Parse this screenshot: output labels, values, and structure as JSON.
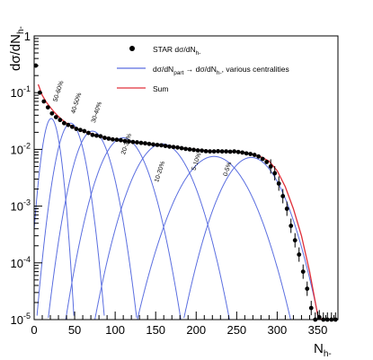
{
  "chart_data": {
    "type": "line",
    "title": "",
    "ylabel": "dσ/dN",
    "ylabel_sub": "h-",
    "xlabel": "N",
    "xlabel_sub": "h-",
    "xlim": [
      0,
      375
    ],
    "ylim": [
      1e-05,
      1
    ],
    "yscale": "log",
    "grid": false,
    "legend_position": "top-right",
    "x_ticks": [
      0,
      50,
      100,
      150,
      200,
      250,
      300,
      350
    ],
    "y_ticks": [
      {
        "value": 1,
        "base": "1",
        "exp": ""
      },
      {
        "value": 0.1,
        "base": "10",
        "exp": "-1"
      },
      {
        "value": 0.01,
        "base": "10",
        "exp": "-2"
      },
      {
        "value": 0.001,
        "base": "10",
        "exp": "-3"
      },
      {
        "value": 0.0001,
        "base": "10",
        "exp": "-4"
      },
      {
        "value": 1e-05,
        "base": "10",
        "exp": "-5"
      }
    ],
    "legend": [
      {
        "key": "data",
        "text": "STAR dσ/dN",
        "sub": "h-",
        "suffix": "",
        "marker": "circle"
      },
      {
        "key": "gauss",
        "text": "dσ/dN",
        "sub": "part",
        "suffix": " → dσ/dN",
        "sub2": "h-",
        "tail": ", various centralities",
        "marker": "line"
      },
      {
        "key": "sum",
        "text": "Sum",
        "sub": "",
        "suffix": "",
        "marker": "line"
      }
    ],
    "colors": {
      "data": "#000000",
      "gauss": "#5a6ee0",
      "sum": "#e0303a"
    },
    "centrality_labels": [
      {
        "text": "50-60%",
        "x": 28,
        "y": 0.068
      },
      {
        "text": "40-50%",
        "x": 50,
        "y": 0.042
      },
      {
        "text": "30-40%",
        "x": 75,
        "y": 0.029
      },
      {
        "text": "20-30%",
        "x": 112,
        "y": 0.008
      },
      {
        "text": "10-20%",
        "x": 153,
        "y": 0.0026
      },
      {
        "text": "5-10%",
        "x": 199,
        "y": 0.0042
      },
      {
        "text": "0-5%",
        "x": 238,
        "y": 0.0033
      }
    ],
    "series": [
      {
        "name": "STAR dσ/dN h-",
        "role": "data",
        "x": [
          2,
          7,
          12,
          17,
          22,
          27,
          32,
          37,
          42,
          47,
          52,
          57,
          62,
          67,
          72,
          77,
          82,
          87,
          92,
          97,
          102,
          107,
          112,
          117,
          122,
          127,
          132,
          137,
          142,
          147,
          152,
          157,
          162,
          167,
          172,
          177,
          182,
          187,
          192,
          197,
          202,
          207,
          212,
          217,
          222,
          227,
          232,
          237,
          242,
          247,
          252,
          257,
          262,
          267,
          272,
          277,
          282,
          287,
          292,
          297,
          302,
          307,
          312,
          317,
          322,
          327,
          332,
          337,
          342,
          347,
          352,
          357,
          362,
          367,
          372
        ],
        "y": [
          0.3,
          0.1,
          0.07,
          0.055,
          0.043,
          0.037,
          0.033,
          0.029,
          0.027,
          0.025,
          0.023,
          0.022,
          0.021,
          0.0195,
          0.018,
          0.0175,
          0.017,
          0.016,
          0.0155,
          0.015,
          0.0148,
          0.0145,
          0.014,
          0.0138,
          0.0135,
          0.0133,
          0.013,
          0.0128,
          0.0125,
          0.0122,
          0.012,
          0.0118,
          0.0115,
          0.0112,
          0.011,
          0.0108,
          0.0105,
          0.0102,
          0.01,
          0.0098,
          0.0096,
          0.0095,
          0.0093,
          0.0092,
          0.0092,
          0.0093,
          0.0092,
          0.0092,
          0.0091,
          0.0092,
          0.009,
          0.0088,
          0.0085,
          0.0083,
          0.008,
          0.0075,
          0.0068,
          0.006,
          0.005,
          0.0038,
          0.0025,
          0.0015,
          0.0009,
          0.00045,
          0.00025,
          0.00014,
          7e-05,
          3.5e-05,
          1.6e-05,
          9e-06,
          1.1e-05,
          1e-05,
          1e-05,
          1e-05,
          1e-05
        ]
      },
      {
        "name": "Sum",
        "role": "sum",
        "x": [
          5,
          10,
          15,
          20,
          25,
          30,
          35,
          40,
          50,
          60,
          70,
          80,
          100,
          120,
          140,
          160,
          180,
          200,
          220,
          240,
          250,
          260,
          270,
          280,
          290,
          300,
          310,
          320,
          330,
          340,
          350,
          355
        ],
        "y": [
          0.14,
          0.09,
          0.068,
          0.055,
          0.045,
          0.038,
          0.033,
          0.029,
          0.024,
          0.021,
          0.019,
          0.017,
          0.0148,
          0.0135,
          0.0125,
          0.0117,
          0.0107,
          0.0098,
          0.0093,
          0.0091,
          0.009,
          0.0087,
          0.0082,
          0.0074,
          0.0062,
          0.0042,
          0.0022,
          0.0009,
          0.0003,
          7e-05,
          1.2e-05,
          5e-06
        ]
      }
    ],
    "gaussians": [
      {
        "mean": 21,
        "sigma": 7,
        "peak": 0.035
      },
      {
        "mean": 45,
        "sigma": 10.5,
        "peak": 0.029
      },
      {
        "mean": 72,
        "sigma": 14,
        "peak": 0.021
      },
      {
        "mean": 110,
        "sigma": 18.5,
        "peak": 0.016
      },
      {
        "mean": 158,
        "sigma": 22,
        "peak": 0.0125
      },
      {
        "mean": 222,
        "sigma": 26,
        "peak": 0.0075
      },
      {
        "mean": 268,
        "sigma": 23,
        "peak": 0.0072
      }
    ]
  }
}
